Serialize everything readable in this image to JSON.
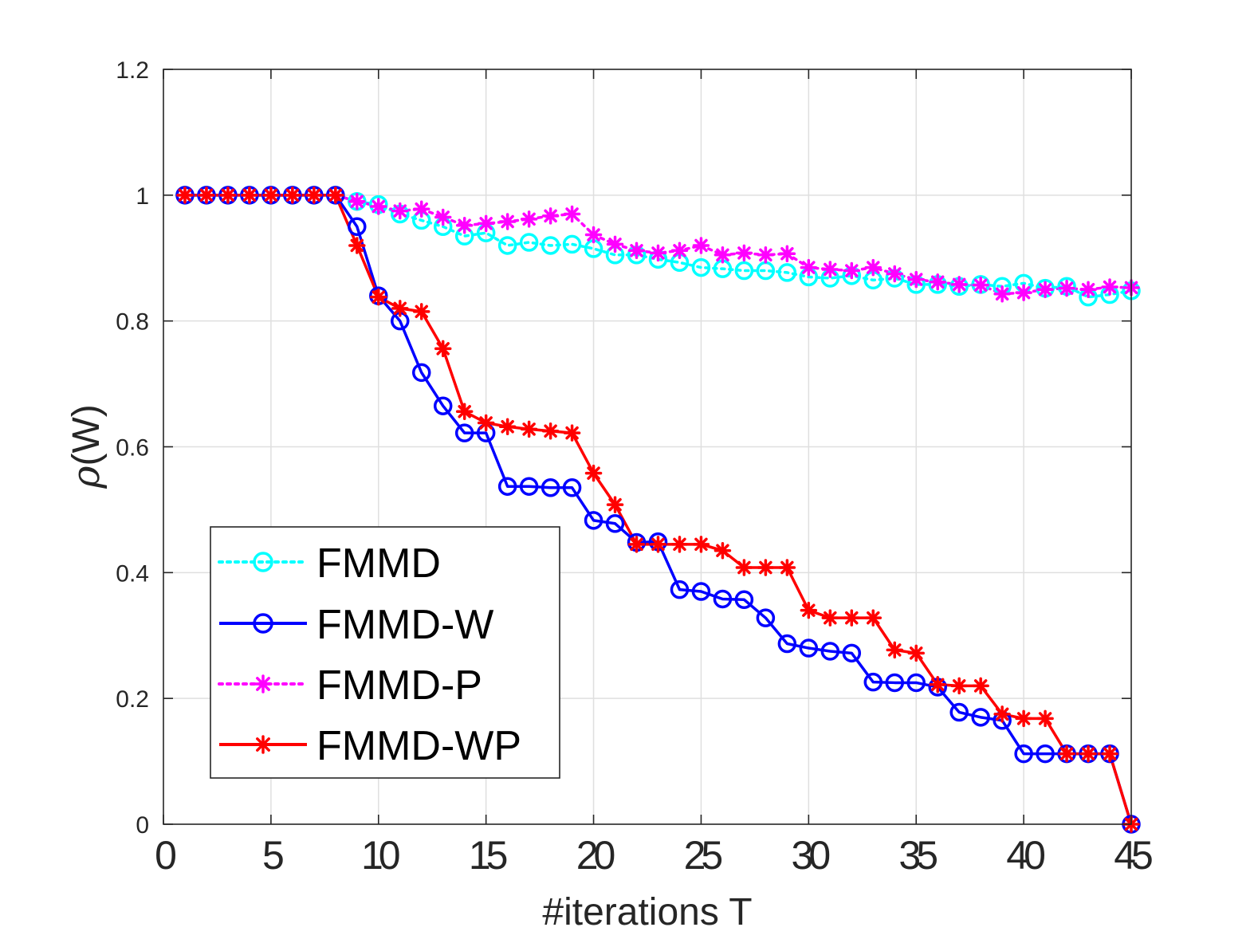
{
  "chart_data": {
    "type": "line",
    "title": "",
    "xlabel": "#iterations T",
    "ylabel_symbol": "ρ",
    "ylabel_rest": "(W)",
    "xlim": [
      0,
      45
    ],
    "ylim": [
      0,
      1.2
    ],
    "xticks": [
      0,
      5,
      10,
      15,
      20,
      25,
      30,
      35,
      40,
      45
    ],
    "yticks": [
      0,
      0.2,
      0.4,
      0.6,
      0.8,
      1,
      1.2
    ],
    "ytick_labels": [
      "0",
      "0.2",
      "0.4",
      "0.6",
      "0.8",
      "1",
      "1.2"
    ],
    "grid": true,
    "legend_position": "bottom-left",
    "x": [
      1,
      2,
      3,
      4,
      5,
      6,
      7,
      8,
      9,
      10,
      11,
      12,
      13,
      14,
      15,
      16,
      17,
      18,
      19,
      20,
      21,
      22,
      23,
      24,
      25,
      26,
      27,
      28,
      29,
      30,
      31,
      32,
      33,
      34,
      35,
      36,
      37,
      38,
      39,
      40,
      41,
      42,
      43,
      44,
      45
    ],
    "series": [
      {
        "name": "FMMD",
        "color": "#00ffff",
        "line": "dotted",
        "marker": "circle",
        "values": [
          1,
          1,
          1,
          1,
          1,
          1,
          1,
          1,
          0.99,
          0.985,
          0.97,
          0.96,
          0.95,
          0.935,
          0.94,
          0.92,
          0.925,
          0.92,
          0.922,
          0.915,
          0.905,
          0.905,
          0.898,
          0.893,
          0.885,
          0.883,
          0.88,
          0.88,
          0.877,
          0.87,
          0.868,
          0.872,
          0.865,
          0.868,
          0.858,
          0.858,
          0.855,
          0.858,
          0.855,
          0.86,
          0.852,
          0.855,
          0.838,
          0.842,
          0.848
        ]
      },
      {
        "name": "FMMD-W",
        "color": "#0000ff",
        "line": "solid",
        "marker": "circle",
        "values": [
          1,
          1,
          1,
          1,
          1,
          1,
          1,
          1,
          0.95,
          0.84,
          0.8,
          0.718,
          0.665,
          0.622,
          0.622,
          0.537,
          0.537,
          0.535,
          0.535,
          0.483,
          0.478,
          0.448,
          0.449,
          0.373,
          0.37,
          0.358,
          0.357,
          0.328,
          0.287,
          0.28,
          0.275,
          0.272,
          0.226,
          0.225,
          0.225,
          0.218,
          0.178,
          0.17,
          0.165,
          0.112,
          0.112,
          0.112,
          0.112,
          0.112,
          0
        ]
      },
      {
        "name": "FMMD-P",
        "color": "#ff00ff",
        "line": "dotted",
        "marker": "star",
        "values": [
          1,
          1,
          1,
          1,
          1,
          1,
          1,
          1,
          0.99,
          0.982,
          0.975,
          0.978,
          0.965,
          0.952,
          0.955,
          0.958,
          0.962,
          0.967,
          0.97,
          0.937,
          0.922,
          0.912,
          0.908,
          0.912,
          0.92,
          0.905,
          0.908,
          0.905,
          0.907,
          0.885,
          0.882,
          0.88,
          0.885,
          0.875,
          0.866,
          0.862,
          0.858,
          0.857,
          0.843,
          0.845,
          0.85,
          0.852,
          0.85,
          0.854,
          0.853
        ]
      },
      {
        "name": "FMMD-WP",
        "color": "#ff0000",
        "line": "solid",
        "marker": "star",
        "values": [
          1,
          1,
          1,
          1,
          1,
          1,
          1,
          1,
          0.92,
          0.838,
          0.82,
          0.815,
          0.756,
          0.656,
          0.638,
          0.632,
          0.628,
          0.625,
          0.622,
          0.558,
          0.508,
          0.445,
          0.445,
          0.445,
          0.445,
          0.435,
          0.408,
          0.408,
          0.408,
          0.34,
          0.328,
          0.328,
          0.328,
          0.277,
          0.272,
          0.222,
          0.22,
          0.22,
          0.175,
          0.168,
          0.168,
          0.112,
          0.112,
          0.112,
          0
        ]
      }
    ]
  }
}
